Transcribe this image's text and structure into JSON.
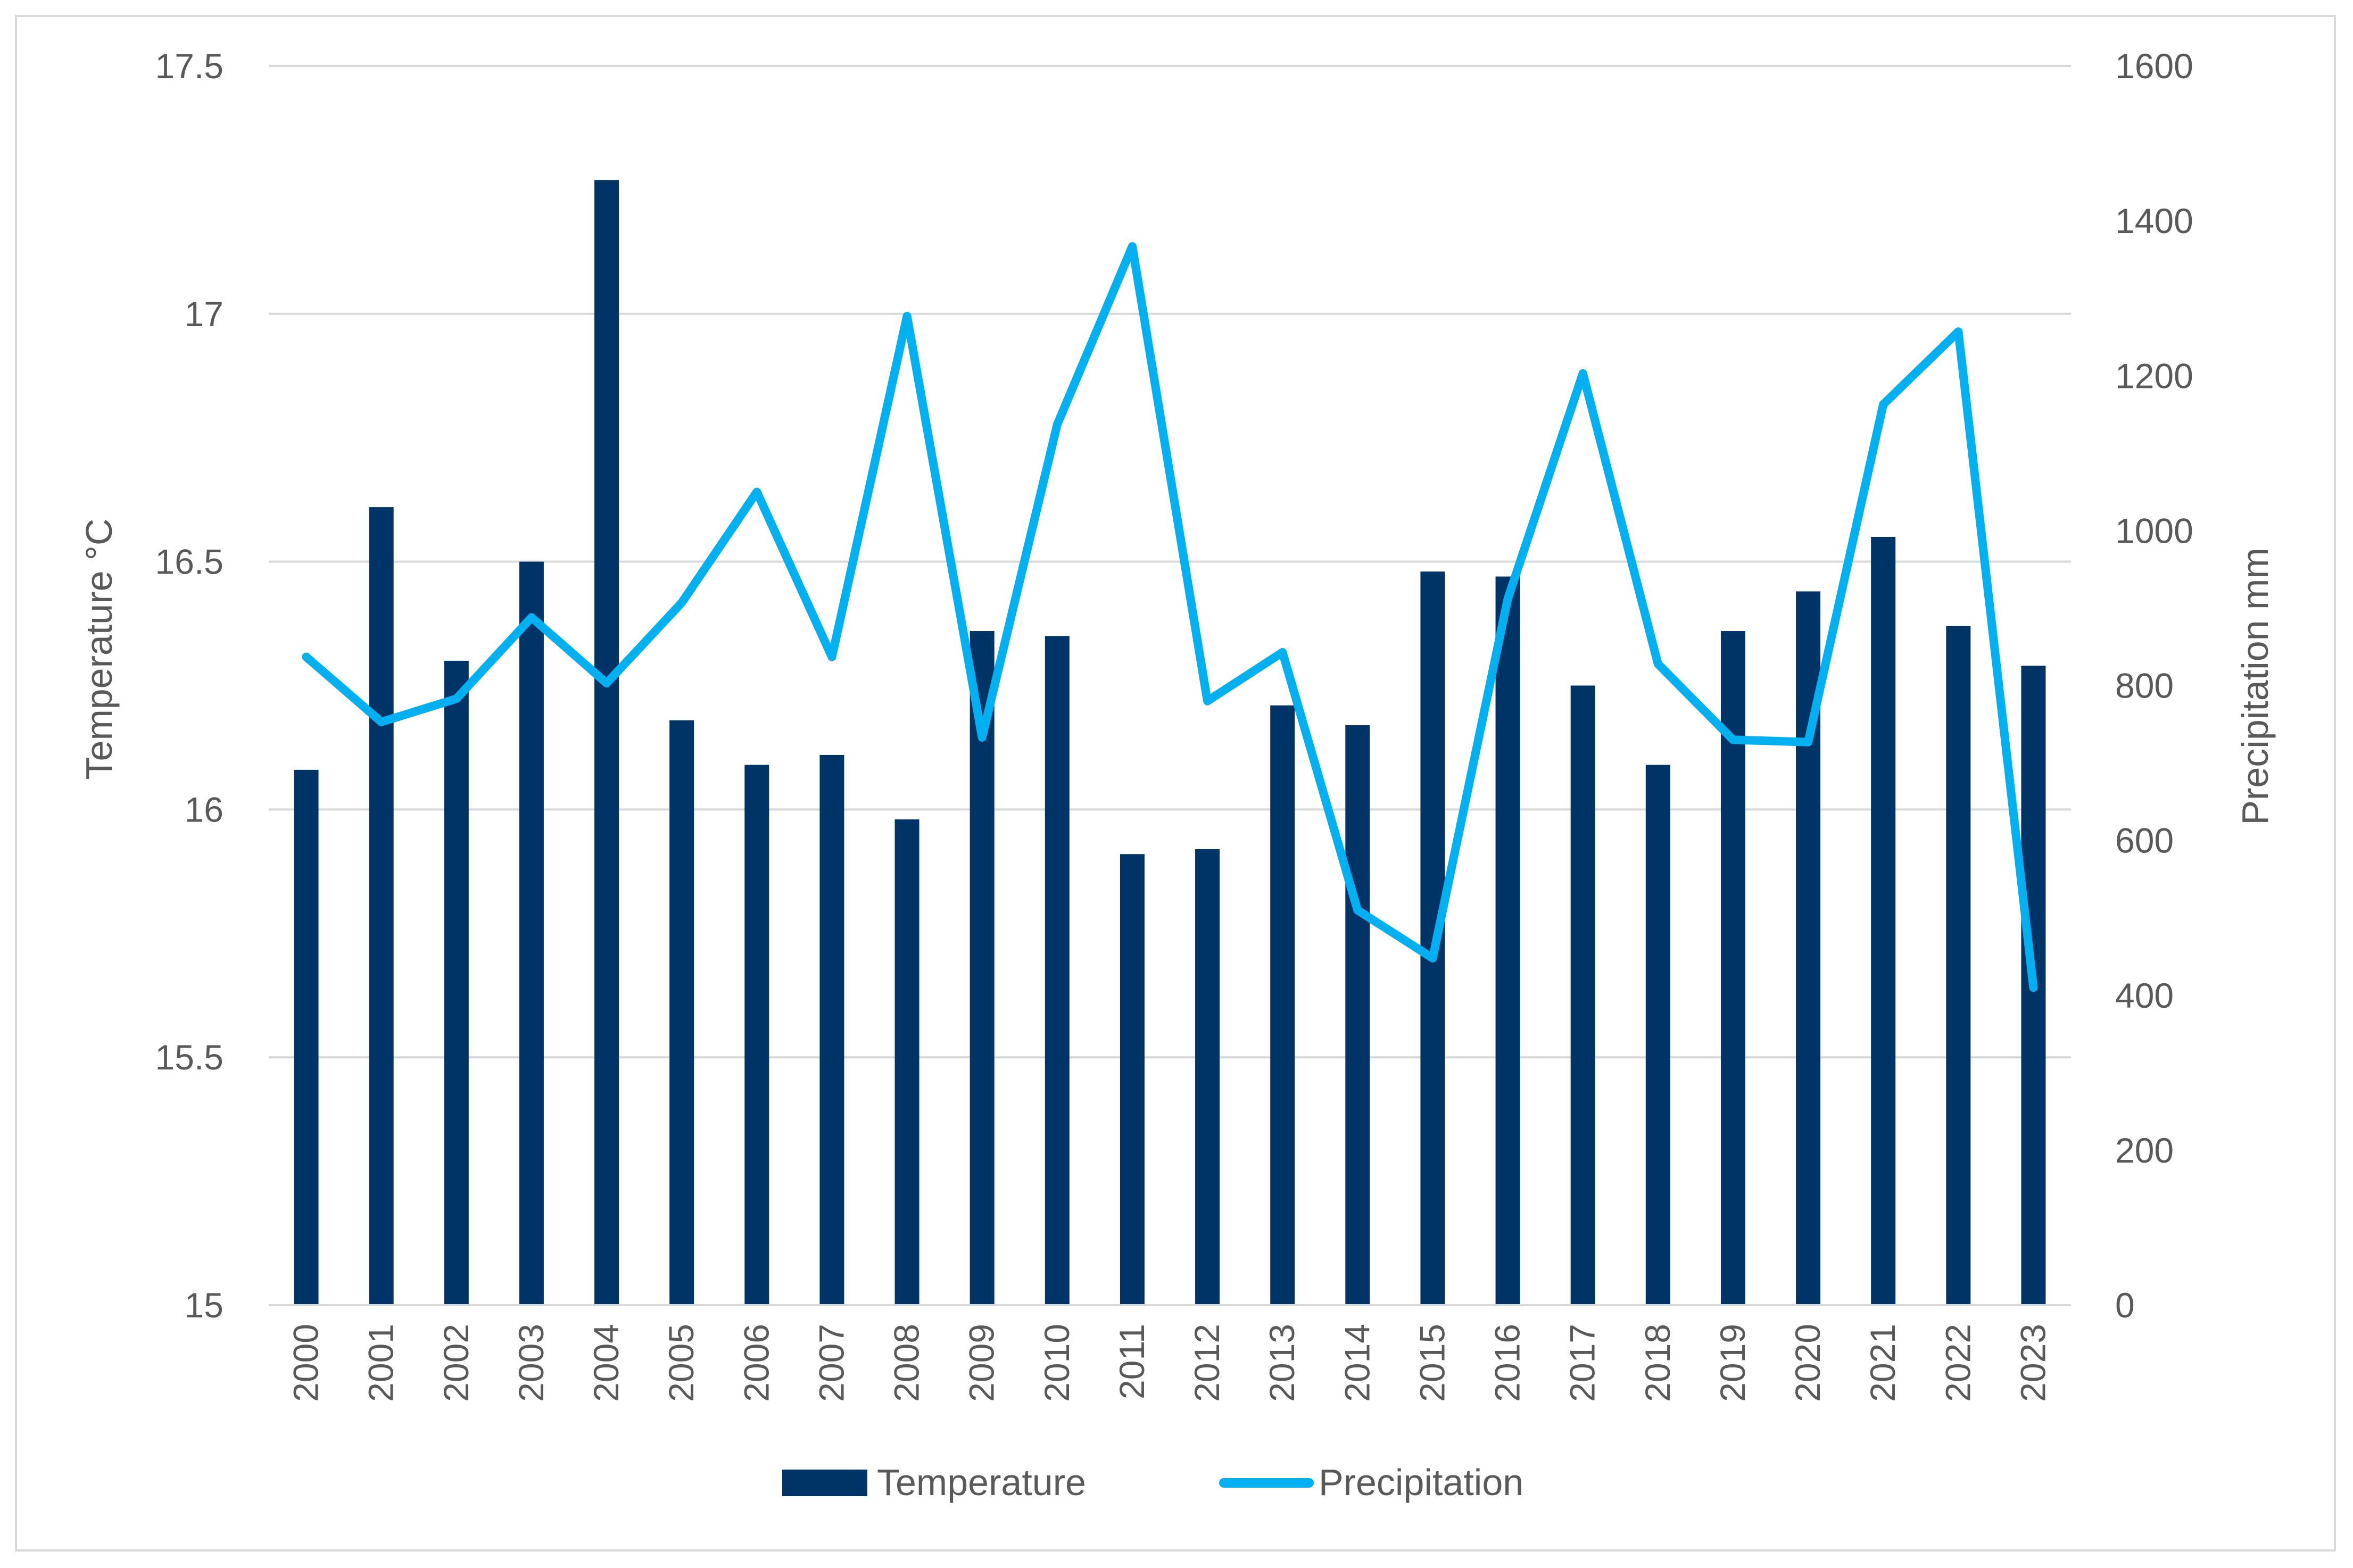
{
  "chart_data": {
    "type": "bar+line",
    "title": "",
    "categories": [
      "2000",
      "2001",
      "2002",
      "2003",
      "2004",
      "2005",
      "2006",
      "2007",
      "2008",
      "2009",
      "2010",
      "2011",
      "2012",
      "2013",
      "2014",
      "2015",
      "2016",
      "2017",
      "2018",
      "2019",
      "2020",
      "2021",
      "2022",
      "2023"
    ],
    "series": [
      {
        "name": "Temperature",
        "type": "bar",
        "axis": "left",
        "color": "#003366",
        "values": [
          16.08,
          16.61,
          16.3,
          16.5,
          17.27,
          16.18,
          16.09,
          16.11,
          15.98,
          16.36,
          16.35,
          15.91,
          15.92,
          16.21,
          16.17,
          16.48,
          16.47,
          16.25,
          16.09,
          16.36,
          16.44,
          16.55,
          16.37,
          16.29
        ]
      },
      {
        "name": "Precipitation",
        "type": "line",
        "axis": "right",
        "color": "#00B0F0",
        "values": [
          837,
          753,
          783,
          888,
          803,
          907,
          1050,
          837,
          1277,
          733,
          1137,
          1367,
          780,
          843,
          510,
          448,
          912,
          1203,
          828,
          730,
          727,
          1163,
          1257,
          410
        ]
      }
    ],
    "y_left": {
      "label": "Temperature °C",
      "min": 15,
      "max": 17.5,
      "ticks": [
        "15",
        "15.5",
        "16",
        "16.5",
        "17",
        "17.5"
      ]
    },
    "y_right": {
      "label": "Precipitation mm",
      "min": 0,
      "max": 1600,
      "ticks": [
        "0",
        "200",
        "400",
        "600",
        "800",
        "1000",
        "1200",
        "1400",
        "1600"
      ]
    },
    "grid": true,
    "legend": {
      "position": "bottom",
      "items": [
        "Temperature",
        "Precipitation"
      ]
    }
  }
}
